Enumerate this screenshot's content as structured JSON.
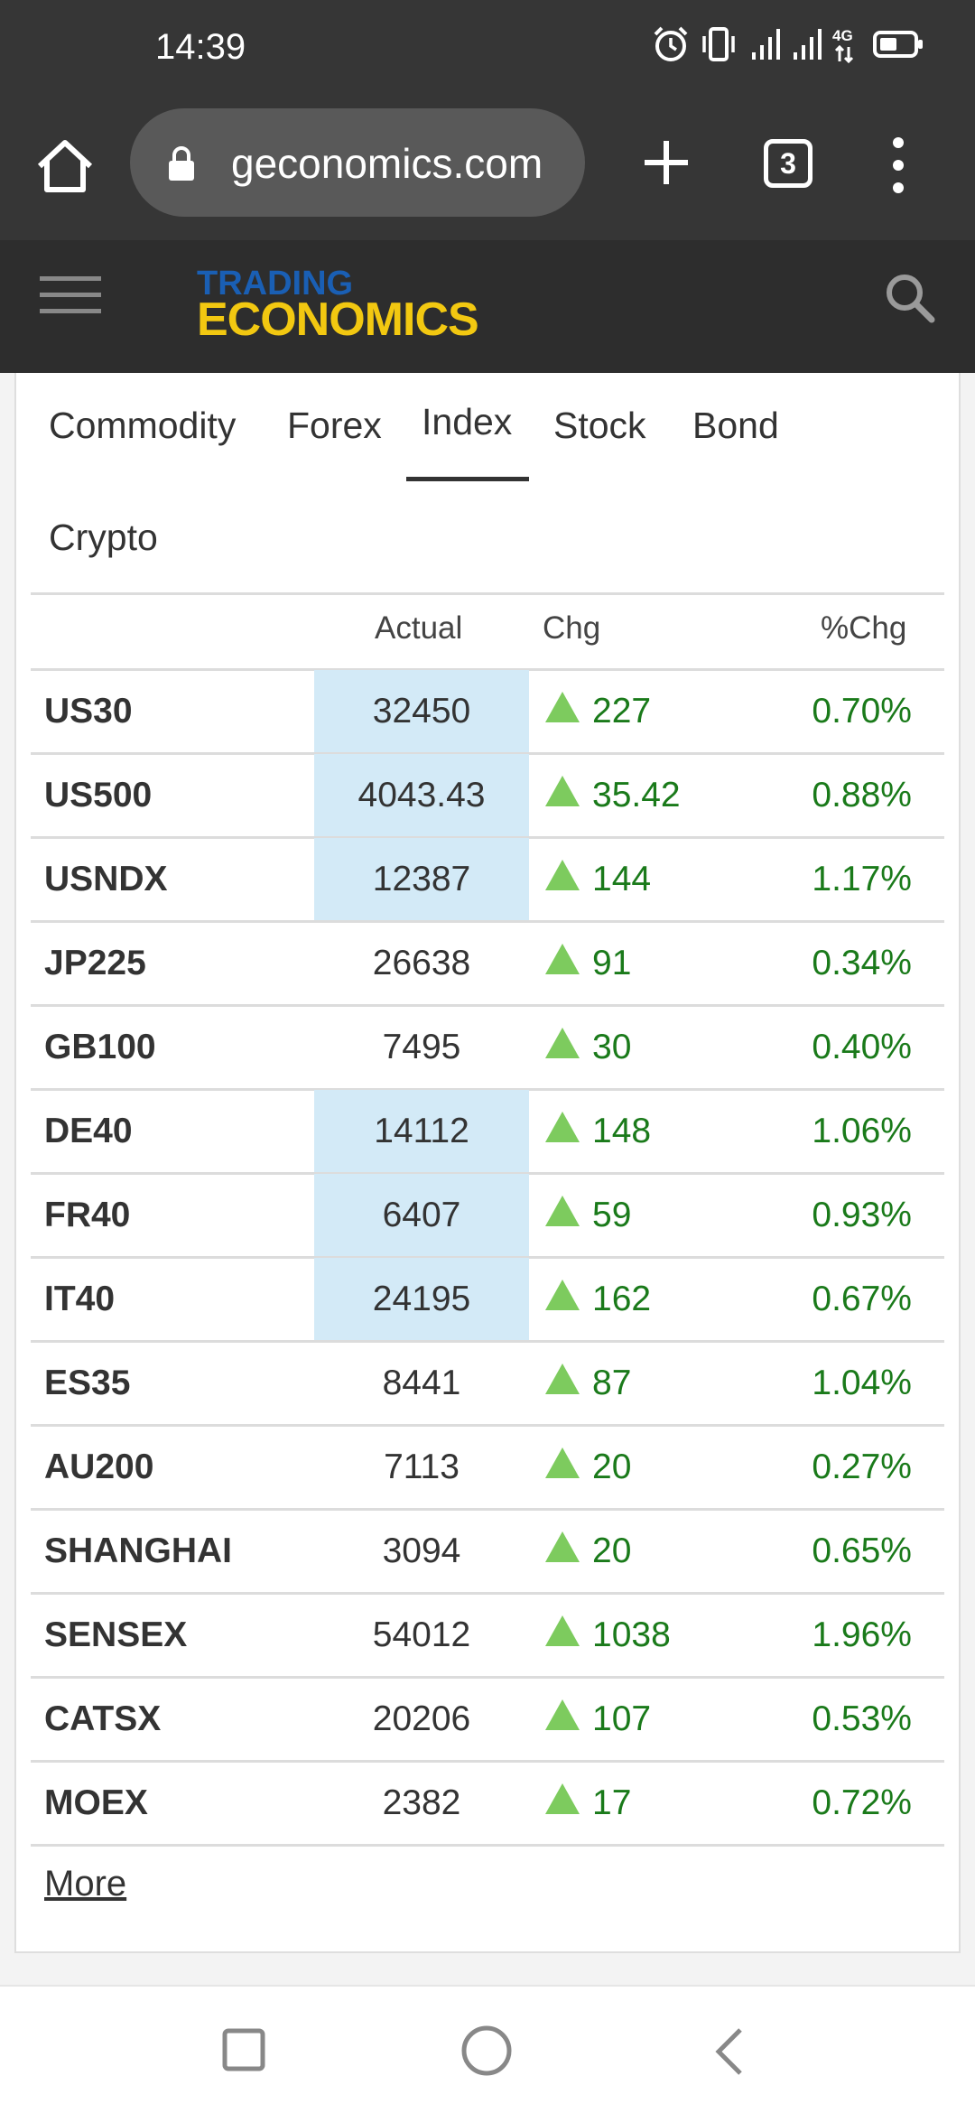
{
  "status_bar": {
    "time": "14:39",
    "icons": [
      "alarm-icon",
      "vibrate-icon",
      "signal-icon",
      "signal-icon",
      "4g-icon",
      "battery-icon"
    ],
    "network_label": "4G"
  },
  "browser": {
    "url": "geconomics.com",
    "tab_count": "3"
  },
  "site": {
    "logo_top": "TRADING",
    "logo_bottom": "ECONOMICS",
    "brand_colors": {
      "trading": "#1a5fb4",
      "economics": "#f2c811"
    }
  },
  "tabs": [
    {
      "label": "Commodity",
      "active": false
    },
    {
      "label": "Forex",
      "active": false
    },
    {
      "label": "Index",
      "active": true
    },
    {
      "label": "Stock",
      "active": false
    },
    {
      "label": "Bond",
      "active": false
    },
    {
      "label": "Crypto",
      "active": false
    }
  ],
  "table": {
    "headers": {
      "symbol": "",
      "actual": "Actual",
      "chg": "Chg",
      "pct_chg": "%Chg"
    },
    "rows": [
      {
        "symbol": "US30",
        "actual": "32450",
        "chg": "227",
        "pct": "0.70%",
        "highlight": true
      },
      {
        "symbol": "US500",
        "actual": "4043.43",
        "chg": "35.42",
        "pct": "0.88%",
        "highlight": true
      },
      {
        "symbol": "USNDX",
        "actual": "12387",
        "chg": "144",
        "pct": "1.17%",
        "highlight": true
      },
      {
        "symbol": "JP225",
        "actual": "26638",
        "chg": "91",
        "pct": "0.34%",
        "highlight": false
      },
      {
        "symbol": "GB100",
        "actual": "7495",
        "chg": "30",
        "pct": "0.40%",
        "highlight": false
      },
      {
        "symbol": "DE40",
        "actual": "14112",
        "chg": "148",
        "pct": "1.06%",
        "highlight": true
      },
      {
        "symbol": "FR40",
        "actual": "6407",
        "chg": "59",
        "pct": "0.93%",
        "highlight": true
      },
      {
        "symbol": "IT40",
        "actual": "24195",
        "chg": "162",
        "pct": "0.67%",
        "highlight": true
      },
      {
        "symbol": "ES35",
        "actual": "8441",
        "chg": "87",
        "pct": "1.04%",
        "highlight": false
      },
      {
        "symbol": "AU200",
        "actual": "7113",
        "chg": "20",
        "pct": "0.27%",
        "highlight": false
      },
      {
        "symbol": "SHANGHAI",
        "actual": "3094",
        "chg": "20",
        "pct": "0.65%",
        "highlight": false
      },
      {
        "symbol": "SENSEX",
        "actual": "54012",
        "chg": "1038",
        "pct": "1.96%",
        "highlight": false
      },
      {
        "symbol": "CATSX",
        "actual": "20206",
        "chg": "107",
        "pct": "0.53%",
        "highlight": false
      },
      {
        "symbol": "MOEX",
        "actual": "2382",
        "chg": "17",
        "pct": "0.72%",
        "highlight": false
      }
    ],
    "colors": {
      "up": "#1a7a1a",
      "up_icon": "#7dcb5e",
      "highlight": "#d3eaf7"
    }
  },
  "more_link": "More",
  "nav": {
    "icons": [
      "recent-apps-icon",
      "home-circle-icon",
      "back-icon"
    ]
  }
}
